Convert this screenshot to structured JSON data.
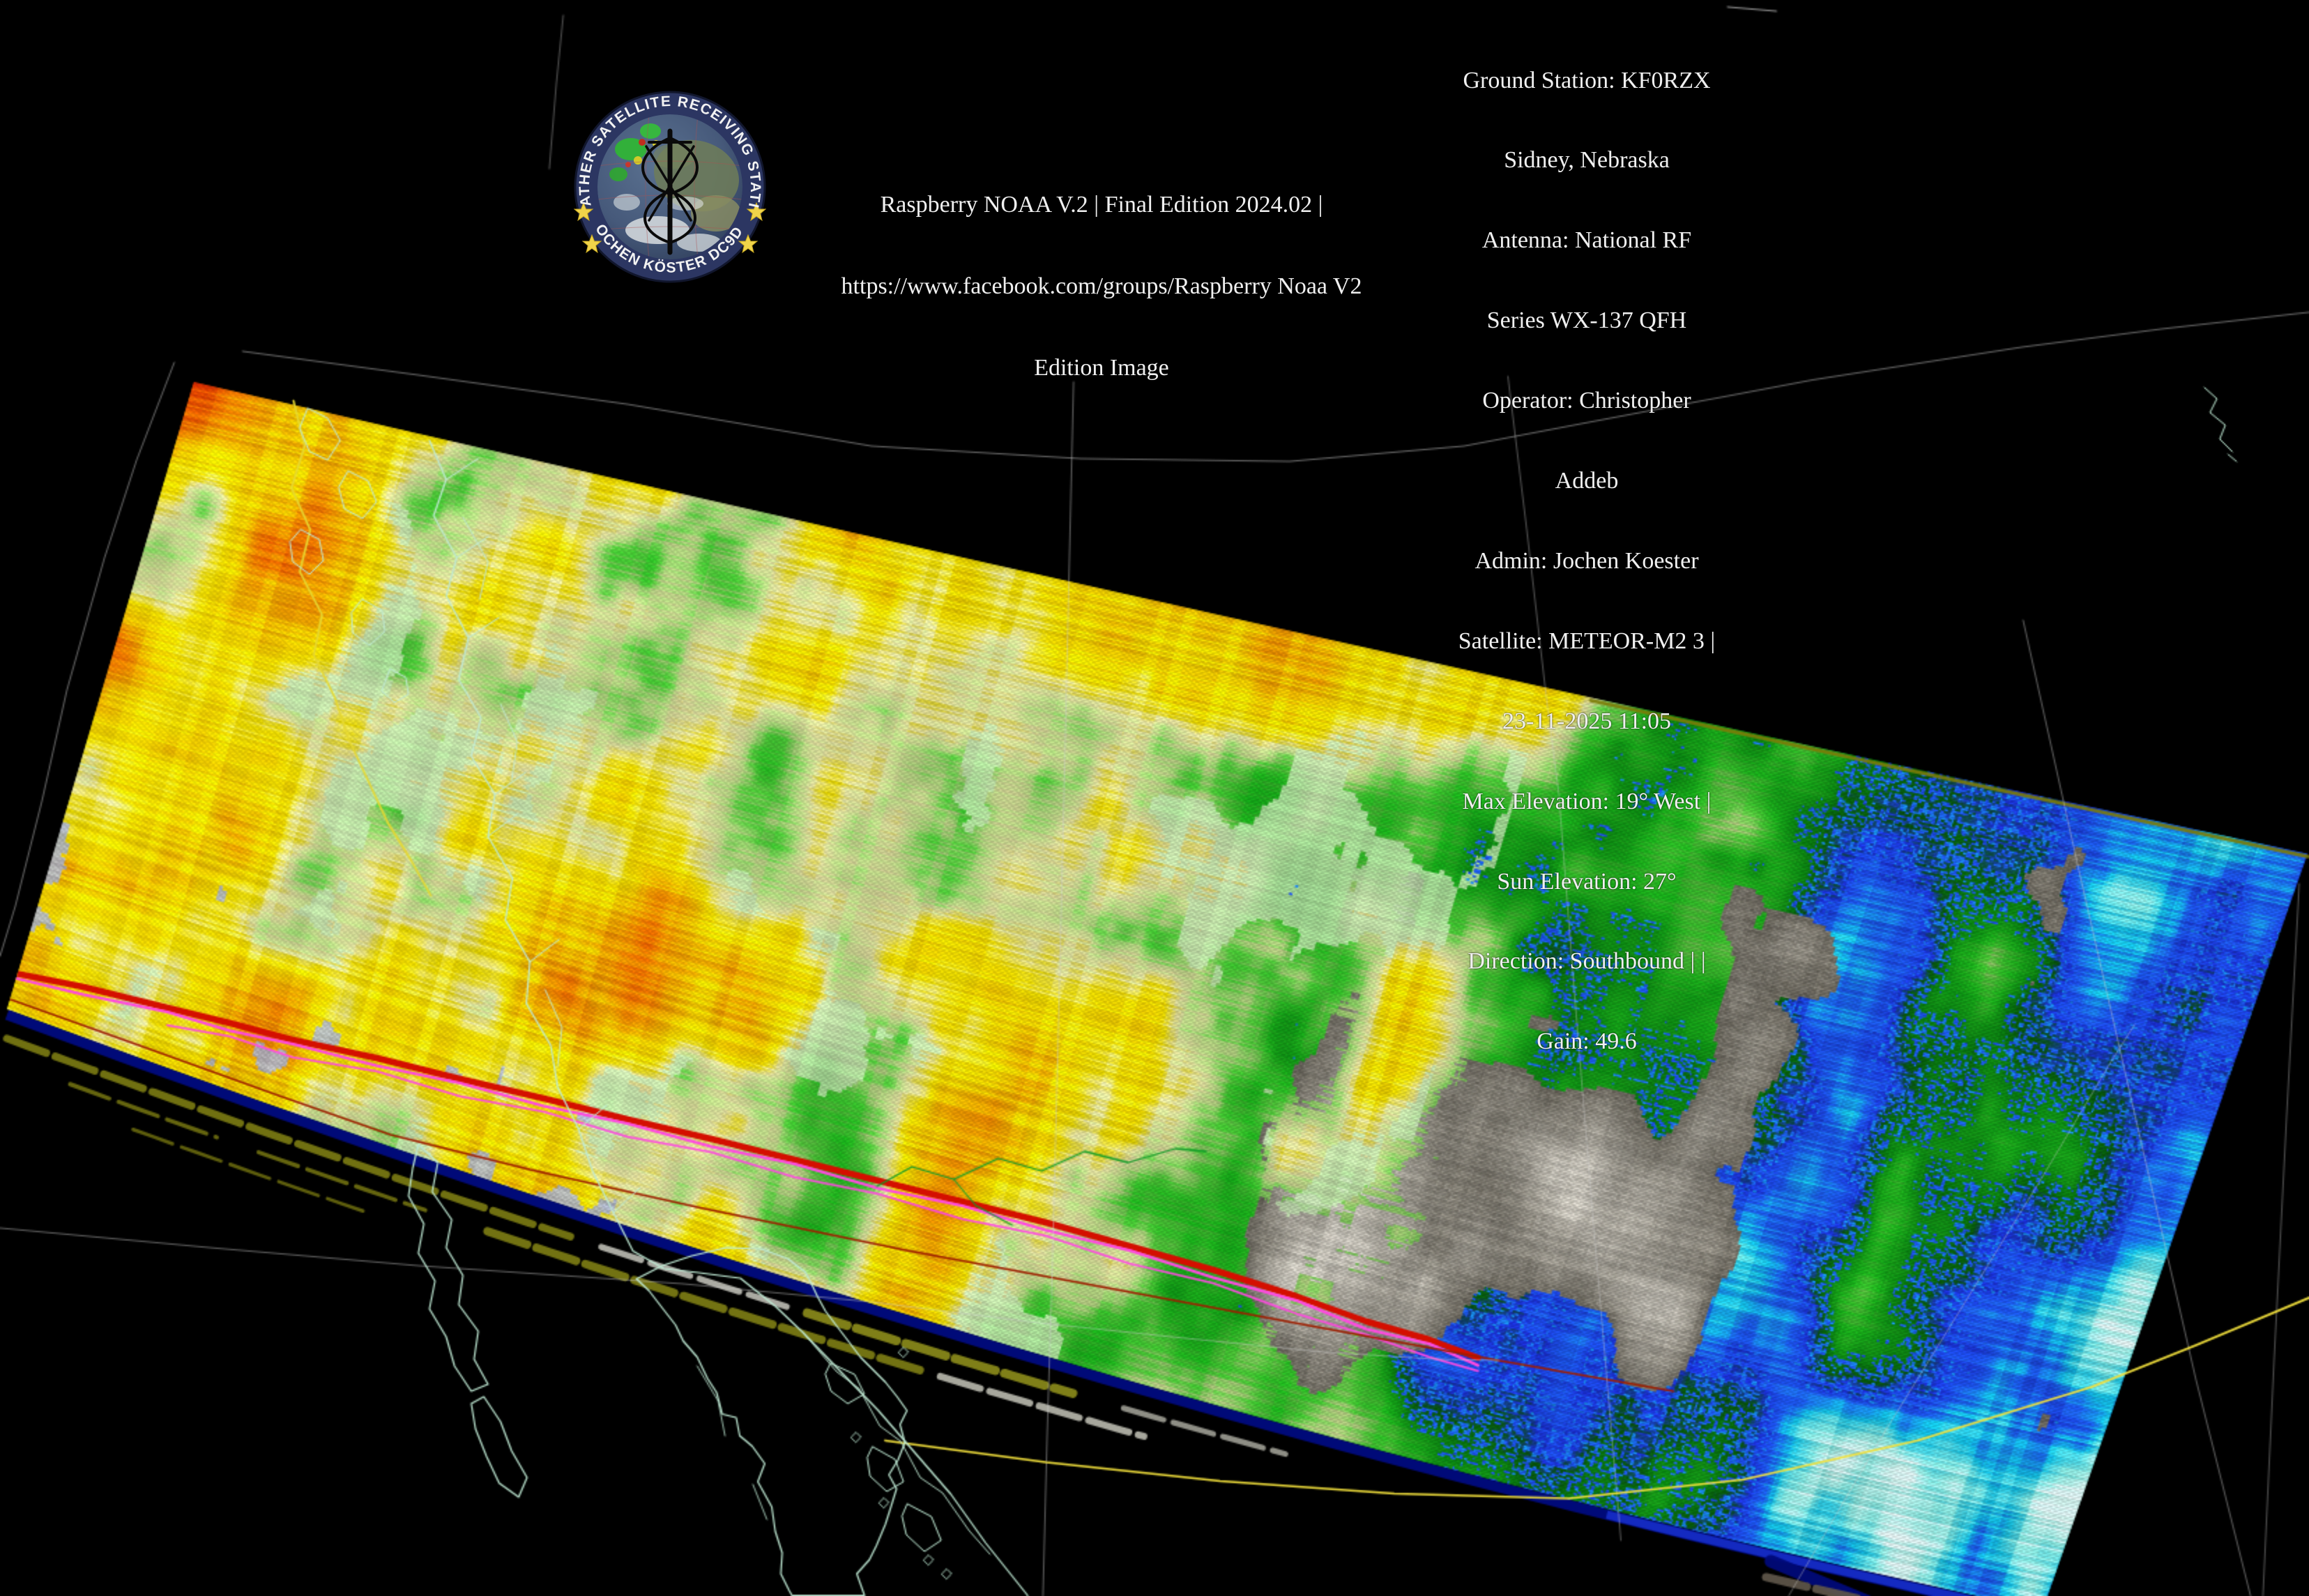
{
  "header": {
    "center_lines": [
      "Raspberry NOAA V.2 | Final Edition 2024.02 |",
      "https://www.facebook.com/groups/Raspberry Noaa V2",
      "Edition Image"
    ]
  },
  "station": {
    "lines": [
      "Ground Station: KF0RZX",
      "Sidney, Nebraska",
      "Antenna: National RF",
      "Series WX-137 QFH",
      "Operator: Christopher",
      "Addeb",
      "Admin: Jochen Koester",
      "Satellite: METEOR-M2 3 |",
      "23-11-2025 11:05",
      "Max Elevation: 19° West |",
      "Sun Elevation: 27°",
      "Direction: Southbound | |",
      "Gain: 49.6"
    ]
  },
  "logo": {
    "top_text": "WEATHER SATELLITE RECEIVING STATION",
    "bottom_text": "JOCHEN KÖSTER DC9DD",
    "ring_color": "#2c3662",
    "star_color": "#f0d44a",
    "icon_names": [
      "earth-icon",
      "qfh-antenna-icon",
      "star-icon"
    ]
  },
  "map": {
    "background": "#000000",
    "overlays": {
      "graticule_color": "#cdcdcd",
      "coastline_color": "#bfe9d4",
      "country_border_color": "#e6d832",
      "latitude_border_color": "#f2e03c",
      "river_color": "#0f9c28",
      "noise_band_red": "#d40f00",
      "noise_band_magenta": "#ff49e0",
      "dark_red_line": "#9e1d00",
      "edge_band_blue": "#000a78",
      "edge_band_blue_bright": "#1830cc",
      "streak_olive": "#7a7a12",
      "streak_gray": "#b9b9b0",
      "edge_olive_line": "#7c7c08"
    },
    "palette": [
      [
        0.0,
        "#990000"
      ],
      [
        0.05,
        "#cc0f00"
      ],
      [
        0.11,
        "#ee3300"
      ],
      [
        0.17,
        "#ff7300"
      ],
      [
        0.24,
        "#ffaa00"
      ],
      [
        0.3,
        "#ffd800"
      ],
      [
        0.36,
        "#ffee00"
      ],
      [
        0.42,
        "#ece9a8"
      ],
      [
        0.47,
        "#bfe28a"
      ],
      [
        0.52,
        "#52cc3c"
      ],
      [
        0.58,
        "#1eb41e"
      ],
      [
        0.64,
        "#0c8a14"
      ],
      [
        0.7,
        "#0a5e10"
      ],
      [
        0.76,
        "#1e32e0"
      ],
      [
        0.83,
        "#2064ff"
      ],
      [
        0.89,
        "#16ccf0"
      ],
      [
        0.95,
        "#8ef2ea"
      ],
      [
        1.0,
        "#d8fbf6"
      ]
    ],
    "cloud_gray_hint": "#8a857e",
    "mint_hint": "#cdf0ba",
    "lavender_hint": "#b2bce0"
  }
}
